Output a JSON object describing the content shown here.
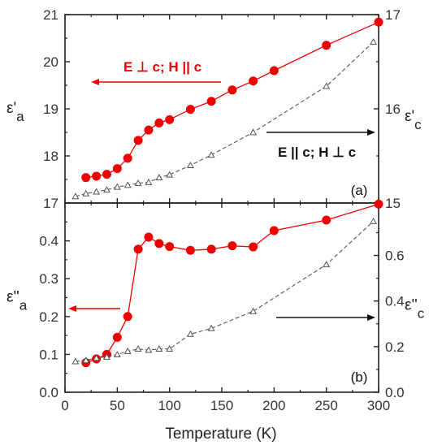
{
  "chart_data": [
    {
      "type": "line",
      "panel_label": "(a)",
      "xlabel": "Temperature (K)",
      "xlim": [
        0,
        300
      ],
      "x_ticks": [
        "0",
        "50",
        "100",
        "150",
        "200",
        "250",
        "300"
      ],
      "left_axis": {
        "label_main": "ε'",
        "label_sub": "a",
        "color": "#ee0000",
        "ylim": [
          17,
          21
        ],
        "ticks": [
          "17",
          "18",
          "19",
          "20",
          "21"
        ]
      },
      "right_axis": {
        "label_main": "ε'",
        "label_sub": "c",
        "color": "#555555",
        "ylim": [
          15,
          17
        ],
        "ticks": [
          "15",
          "16",
          "17"
        ]
      },
      "annotations": {
        "left_arrow_label": "E ⊥ c; H || c",
        "right_arrow_label": "E || c; H ⊥ c"
      },
      "series": [
        {
          "axis": "left",
          "color": "#ee0000",
          "marker": "filled-circle",
          "line": "solid",
          "x": [
            20,
            30,
            40,
            50,
            60,
            70,
            80,
            90,
            100,
            120,
            140,
            160,
            180,
            200,
            250,
            300
          ],
          "y": [
            17.54,
            17.57,
            17.61,
            17.73,
            17.95,
            18.33,
            18.55,
            18.7,
            18.77,
            18.99,
            19.16,
            19.4,
            19.59,
            19.81,
            20.35,
            20.84
          ]
        },
        {
          "axis": "right",
          "color": "#555555",
          "marker": "open-triangle",
          "line": "dashed",
          "x": [
            10,
            20,
            30,
            40,
            50,
            60,
            70,
            80,
            90,
            100,
            120,
            140,
            180,
            250,
            295
          ],
          "y": [
            15.07,
            15.1,
            15.12,
            15.14,
            15.17,
            15.19,
            15.21,
            15.22,
            15.27,
            15.3,
            15.4,
            15.51,
            15.75,
            16.24,
            16.71
          ]
        }
      ]
    },
    {
      "type": "line",
      "panel_label": "(b)",
      "xlabel": "Temperature (K)",
      "xlim": [
        0,
        300
      ],
      "x_ticks": [
        "0",
        "50",
        "100",
        "150",
        "200",
        "250",
        "300"
      ],
      "left_axis": {
        "label_main": "ε''",
        "label_sub": "a",
        "color": "#ee0000",
        "ylim": [
          0,
          0.5
        ],
        "ticks": [
          "0.0",
          "0.1",
          "0.2",
          "0.3",
          "0.4"
        ]
      },
      "right_axis": {
        "label_main": "ε''",
        "label_sub": "c",
        "color": "#555555",
        "ylim": [
          0,
          0.83
        ],
        "ticks": [
          "0.0",
          "0.2",
          "0.4",
          "0.6"
        ]
      },
      "series": [
        {
          "axis": "left",
          "color": "#ee0000",
          "marker": "filled-circle",
          "line": "solid",
          "x": [
            20,
            30,
            40,
            50,
            60,
            70,
            80,
            90,
            100,
            120,
            140,
            160,
            180,
            200,
            250,
            300
          ],
          "y": [
            0.078,
            0.088,
            0.1,
            0.145,
            0.2,
            0.378,
            0.41,
            0.393,
            0.385,
            0.375,
            0.378,
            0.387,
            0.384,
            0.427,
            0.455,
            0.497
          ]
        },
        {
          "axis": "right",
          "color": "#555555",
          "marker": "open-triangle",
          "line": "dashed",
          "x": [
            10,
            20,
            30,
            40,
            50,
            60,
            70,
            80,
            90,
            100,
            120,
            140,
            180,
            250,
            295
          ],
          "y": [
            0.135,
            0.14,
            0.15,
            0.155,
            0.165,
            0.18,
            0.19,
            0.185,
            0.19,
            0.19,
            0.255,
            0.28,
            0.355,
            0.56,
            0.75
          ]
        }
      ]
    }
  ]
}
